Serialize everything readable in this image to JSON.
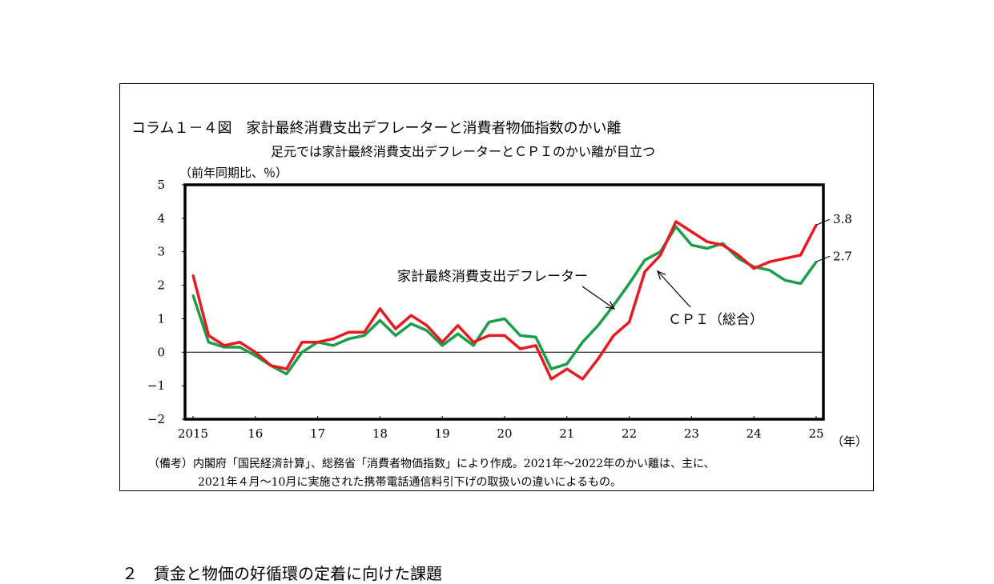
{
  "figure": {
    "title": "コラム１－４図　家計最終消費支出デフレーターと消費者物価指数のかい離",
    "subtitle": "足元では家計最終消費支出デフレーターとＣＰＩのかい離が目立つ",
    "unit_label": "（前年同期比、％）",
    "note_line1": "（備考）内閣府「国民経済計算」、総務省「消費者物価指数」により作成。2021年～2022年のかい離は、主に、",
    "note_line2": "2021年４月～10月に実施された携帯電話通信料引下げの取扱いの違いによるもの。"
  },
  "section_heading": "２　賃金と物価の好循環の定着に向けた課題",
  "chart_data": {
    "type": "line",
    "xlabel": "（年）",
    "ylabel": "（前年同期比、％）",
    "ylim": [
      -2,
      5
    ],
    "yticks": [
      "5",
      "4",
      "3",
      "2",
      "1",
      "0",
      "−1",
      "−2"
    ],
    "ytick_values": [
      5,
      4,
      3,
      2,
      1,
      0,
      -1,
      -2
    ],
    "year_labels": [
      "2015",
      "16",
      "17",
      "18",
      "19",
      "20",
      "21",
      "22",
      "23",
      "24",
      "25"
    ],
    "x_start": 2015.0,
    "x_step": 0.25,
    "grid": false,
    "zero_line": true,
    "series": [
      {
        "name": "家計最終消費支出デフレーター",
        "color": "#1a9e4a",
        "values": [
          1.7,
          0.3,
          0.15,
          0.15,
          -0.1,
          -0.4,
          -0.65,
          0.0,
          0.3,
          0.2,
          0.4,
          0.5,
          0.95,
          0.5,
          0.85,
          0.65,
          0.2,
          0.55,
          0.2,
          0.9,
          1.0,
          0.5,
          0.45,
          -0.5,
          -0.35,
          0.3,
          0.8,
          1.4,
          2.05,
          2.75,
          3.0,
          3.75,
          3.2,
          3.1,
          3.25,
          2.8,
          2.55,
          2.45,
          2.15,
          2.05,
          2.7
        ],
        "end_label": "2.7"
      },
      {
        "name": "ＣＰＩ（総合）",
        "color": "#e8191f",
        "values": [
          2.3,
          0.5,
          0.2,
          0.3,
          0.0,
          -0.4,
          -0.5,
          0.3,
          0.3,
          0.4,
          0.6,
          0.6,
          1.3,
          0.7,
          1.1,
          0.8,
          0.3,
          0.8,
          0.3,
          0.5,
          0.5,
          0.1,
          0.2,
          -0.8,
          -0.5,
          -0.8,
          -0.2,
          0.5,
          0.9,
          2.4,
          2.9,
          3.9,
          3.6,
          3.3,
          3.2,
          2.9,
          2.5,
          2.7,
          2.8,
          2.9,
          3.8
        ],
        "end_label": "3.8"
      }
    ],
    "annotations": [
      {
        "text": "家計最終消費支出デフレーター",
        "series": 0
      },
      {
        "text": "ＣＰＩ（総合）",
        "series": 1
      }
    ]
  }
}
